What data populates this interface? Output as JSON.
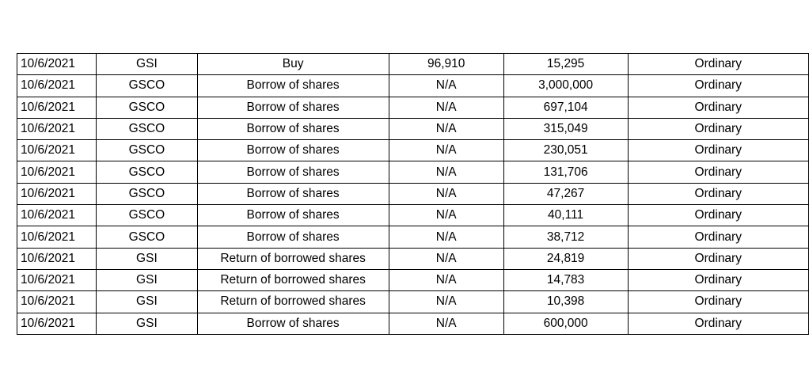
{
  "transactions": {
    "rows": [
      {
        "date": "10/6/2021",
        "entity": "GSI",
        "type": "Buy",
        "price": "96,910",
        "quantity": "15,295",
        "class": "Ordinary"
      },
      {
        "date": "10/6/2021",
        "entity": "GSCO",
        "type": "Borrow of shares",
        "price": "N/A",
        "quantity": "3,000,000",
        "class": "Ordinary"
      },
      {
        "date": "10/6/2021",
        "entity": "GSCO",
        "type": "Borrow of shares",
        "price": "N/A",
        "quantity": "697,104",
        "class": "Ordinary"
      },
      {
        "date": "10/6/2021",
        "entity": "GSCO",
        "type": "Borrow of shares",
        "price": "N/A",
        "quantity": "315,049",
        "class": "Ordinary"
      },
      {
        "date": "10/6/2021",
        "entity": "GSCO",
        "type": "Borrow of shares",
        "price": "N/A",
        "quantity": "230,051",
        "class": "Ordinary"
      },
      {
        "date": "10/6/2021",
        "entity": "GSCO",
        "type": "Borrow of shares",
        "price": "N/A",
        "quantity": "131,706",
        "class": "Ordinary"
      },
      {
        "date": "10/6/2021",
        "entity": "GSCO",
        "type": "Borrow of shares",
        "price": "N/A",
        "quantity": "47,267",
        "class": "Ordinary"
      },
      {
        "date": "10/6/2021",
        "entity": "GSCO",
        "type": "Borrow of shares",
        "price": "N/A",
        "quantity": "40,111",
        "class": "Ordinary"
      },
      {
        "date": "10/6/2021",
        "entity": "GSCO",
        "type": "Borrow of shares",
        "price": "N/A",
        "quantity": "38,712",
        "class": "Ordinary"
      },
      {
        "date": "10/6/2021",
        "entity": "GSI",
        "type": "Return of borrowed shares",
        "price": "N/A",
        "quantity": "24,819",
        "class": "Ordinary"
      },
      {
        "date": "10/6/2021",
        "entity": "GSI",
        "type": "Return of borrowed shares",
        "price": "N/A",
        "quantity": "14,783",
        "class": "Ordinary"
      },
      {
        "date": "10/6/2021",
        "entity": "GSI",
        "type": "Return of borrowed shares",
        "price": "N/A",
        "quantity": "10,398",
        "class": "Ordinary"
      },
      {
        "date": "10/6/2021",
        "entity": "GSI",
        "type": "Borrow of shares",
        "price": "N/A",
        "quantity": "600,000",
        "class": "Ordinary"
      }
    ]
  }
}
